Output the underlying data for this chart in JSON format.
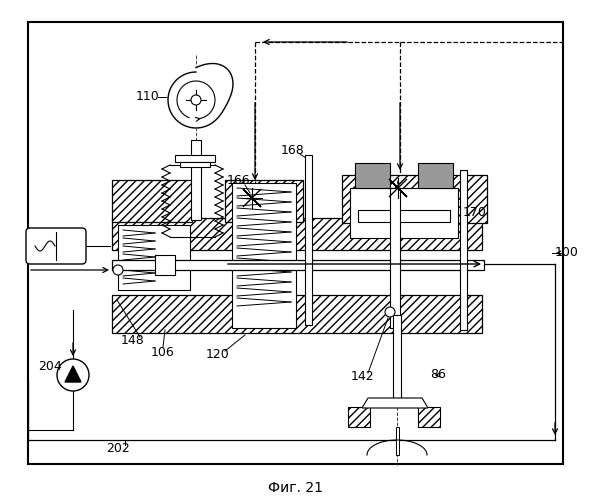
{
  "title": "Фиг. 21",
  "bg_color": "#ffffff"
}
